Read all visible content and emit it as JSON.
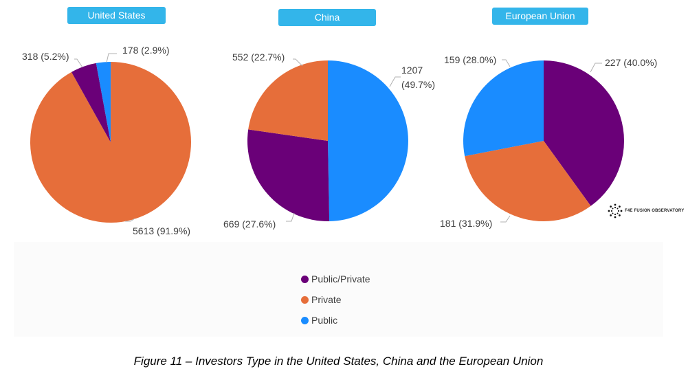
{
  "colors": {
    "public_private": "#6a0078",
    "private": "#e66e3a",
    "public": "#1a8cff",
    "title_pill": "#33b5ea"
  },
  "chart_data": [
    {
      "type": "pie",
      "title": "United States",
      "slices": [
        {
          "category": "Private",
          "value": 5613,
          "percent": 91.9,
          "label": "5613 (91.9%)"
        },
        {
          "category": "Public/Private",
          "value": 318,
          "percent": 5.2,
          "label": "318 (5.2%)"
        },
        {
          "category": "Public",
          "value": 178,
          "percent": 2.9,
          "label": "178 (2.9%)"
        }
      ]
    },
    {
      "type": "pie",
      "title": "China",
      "slices": [
        {
          "category": "Public",
          "value": 1207,
          "percent": 49.7,
          "label": "1207 (49.7%)"
        },
        {
          "category": "Public/Private",
          "value": 669,
          "percent": 27.6,
          "label": "669 (27.6%)"
        },
        {
          "category": "Private",
          "value": 552,
          "percent": 22.7,
          "label": "552 (22.7%)"
        }
      ]
    },
    {
      "type": "pie",
      "title": "European Union",
      "slices": [
        {
          "category": "Public/Private",
          "value": 227,
          "percent": 40.0,
          "label": "227 (40.0%)"
        },
        {
          "category": "Private",
          "value": 181,
          "percent": 31.9,
          "label": "181 (31.9%)"
        },
        {
          "category": "Public",
          "value": 159,
          "percent": 28.0,
          "label": "159 (28.0%)"
        }
      ]
    }
  ],
  "legend": {
    "placement": "bottom-center",
    "items": [
      "Public/Private",
      "Private",
      "Public"
    ]
  },
  "watermark": {
    "icon": "fusion-observatory-logo-icon",
    "text": "F4E FUSION OBSERVATORY"
  },
  "caption": "Figure 11 – Investors Type in the United States, China and the European Union"
}
